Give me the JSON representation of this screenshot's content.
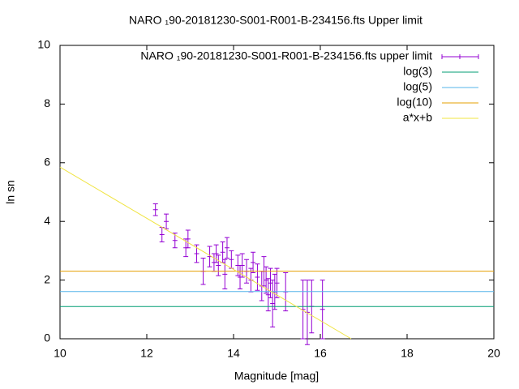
{
  "chart_data": {
    "type": "scatter",
    "title": "NARO ₁90-20181230-S001-R001-B-234156.fts Upper limit",
    "x_label": "Magnitude [mag]",
    "y_label": "ln sn",
    "xlim": [
      10,
      20
    ],
    "xticks": [
      10,
      12,
      14,
      16,
      18,
      20
    ],
    "ylim": [
      0,
      10
    ],
    "yticks": [
      0,
      2,
      4,
      6,
      8,
      10
    ],
    "legend": "top-right",
    "series": [
      {
        "name": "NARO ₁90-20181230-S001-R001-B-234156.fts upper limit",
        "color": "#9400d3",
        "kind": "errorbars",
        "x": [
          12.2,
          12.35,
          12.45,
          12.65,
          12.9,
          12.95,
          13.15,
          13.3,
          13.45,
          13.55,
          13.6,
          13.65,
          13.75,
          13.8,
          13.85,
          13.95,
          14.1,
          14.15,
          14.2,
          14.3,
          14.4,
          14.45,
          14.55,
          14.65,
          14.7,
          14.75,
          14.8,
          14.85,
          14.9,
          14.95,
          15.0,
          15.2,
          15.6,
          15.7,
          15.8,
          16.05
        ],
        "values": [
          4.4,
          3.55,
          4.0,
          3.35,
          3.1,
          3.4,
          2.9,
          2.3,
          2.8,
          2.6,
          2.9,
          2.5,
          2.95,
          2.2,
          3.1,
          2.7,
          2.5,
          2.1,
          2.5,
          2.3,
          2.0,
          2.6,
          2.1,
          1.8,
          2.3,
          2.0,
          1.5,
          1.9,
          1.2,
          1.6,
          1.9,
          1.6,
          1.0,
          0.9,
          1.1,
          1.0
        ],
        "errors": [
          0.2,
          0.25,
          0.25,
          0.25,
          0.3,
          0.3,
          0.3,
          0.45,
          0.35,
          0.3,
          0.3,
          0.35,
          0.35,
          0.5,
          0.35,
          0.3,
          0.35,
          0.4,
          0.4,
          0.4,
          0.4,
          0.35,
          0.45,
          0.5,
          0.5,
          0.45,
          0.55,
          0.5,
          0.8,
          0.6,
          0.5,
          0.65,
          1.0,
          1.1,
          0.9,
          1.0
        ]
      },
      {
        "name": "log(3)",
        "color": "#009e73",
        "kind": "hline",
        "value": 1.0986
      },
      {
        "name": "log(5)",
        "color": "#56b4e9",
        "kind": "hline",
        "value": 1.6094
      },
      {
        "name": "log(10)",
        "color": "#e69f00",
        "kind": "hline",
        "value": 2.3026
      },
      {
        "name": "a*x+b",
        "color": "#f0e442",
        "kind": "line",
        "x": [
          10,
          16.71
        ],
        "values": [
          5.85,
          0
        ]
      }
    ]
  }
}
